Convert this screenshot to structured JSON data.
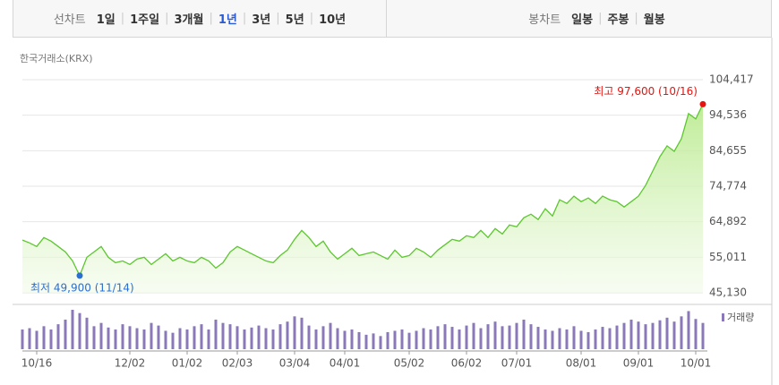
{
  "tabs": {
    "line": {
      "label": "선차트",
      "options": [
        "1일",
        "1주일",
        "3개월",
        "1년",
        "3년",
        "5년",
        "10년"
      ],
      "selected": 3
    },
    "candle": {
      "label": "봉차트",
      "options": [
        "일봉",
        "주봉",
        "월봉"
      ]
    }
  },
  "chart_data": {
    "type": "line",
    "source": "한국거래소(KRX)",
    "color": "#5cc72e",
    "high_label": "최고 97,600 (10/16)",
    "low_label": "최저 49,900 (11/14)",
    "high_color": "#e8140f",
    "low_color": "#2a6fd1",
    "categories": [
      null,
      null,
      "10/16",
      null,
      null,
      null,
      null,
      null,
      null,
      null,
      null,
      null,
      null,
      null,
      null,
      "12/02",
      null,
      null,
      null,
      null,
      null,
      null,
      null,
      "01/02",
      null,
      null,
      null,
      null,
      null,
      null,
      "02/03",
      null,
      null,
      null,
      null,
      null,
      null,
      null,
      "03/04",
      null,
      null,
      null,
      null,
      null,
      null,
      "04/01",
      null,
      null,
      null,
      null,
      null,
      null,
      null,
      null,
      "05/02",
      null,
      null,
      null,
      null,
      null,
      null,
      null,
      "06/02",
      null,
      null,
      null,
      null,
      null,
      null,
      "07/01",
      null,
      null,
      null,
      null,
      null,
      null,
      null,
      null,
      "08/01",
      null,
      null,
      null,
      null,
      null,
      null,
      null,
      "09/01",
      null,
      null,
      null,
      null,
      null,
      null,
      null,
      "10/01",
      null
    ],
    "values": [
      59800,
      59000,
      58000,
      60500,
      59500,
      58000,
      56500,
      54000,
      49900,
      55000,
      56500,
      58000,
      55000,
      53500,
      54000,
      53000,
      54500,
      55000,
      53000,
      54500,
      56000,
      54000,
      55000,
      54000,
      53500,
      55000,
      54000,
      52000,
      53500,
      56500,
      58000,
      57000,
      56000,
      55000,
      54000,
      53500,
      55500,
      57000,
      60000,
      62500,
      60500,
      58000,
      59500,
      56500,
      54500,
      56000,
      57500,
      55500,
      56000,
      56500,
      55500,
      54500,
      57000,
      55000,
      55500,
      57500,
      56500,
      55000,
      57000,
      58500,
      60000,
      59500,
      61000,
      60500,
      62500,
      60500,
      63000,
      61500,
      64000,
      63500,
      66000,
      67000,
      65500,
      68500,
      66500,
      71000,
      70000,
      72000,
      70500,
      71500,
      70000,
      72000,
      71000,
      70500,
      69000,
      70500,
      72000,
      75000,
      79000,
      83000,
      86000,
      84500,
      88000,
      95000,
      93500,
      97600
    ],
    "ylim": [
      45130,
      104417
    ],
    "yticks": [
      {
        "value": 45130,
        "label": "45,130"
      },
      {
        "value": 55011,
        "label": "55,011"
      },
      {
        "value": 64892,
        "label": "64,892"
      },
      {
        "value": 74774,
        "label": "74,774"
      },
      {
        "value": 84655,
        "label": "84,655"
      },
      {
        "value": 94536,
        "label": "94,536"
      },
      {
        "value": 104417,
        "label": "104,417"
      }
    ],
    "grid": true,
    "volume": {
      "name": "거래량",
      "color": "#8a78b8",
      "ylim": [
        0,
        60
      ],
      "values": [
        30,
        32,
        28,
        35,
        30,
        38,
        45,
        60,
        55,
        48,
        35,
        40,
        33,
        30,
        38,
        35,
        32,
        30,
        40,
        36,
        28,
        25,
        32,
        30,
        35,
        38,
        30,
        45,
        40,
        38,
        35,
        30,
        33,
        36,
        32,
        30,
        38,
        42,
        50,
        48,
        36,
        30,
        35,
        40,
        32,
        28,
        30,
        26,
        22,
        24,
        20,
        26,
        28,
        30,
        25,
        28,
        32,
        30,
        35,
        38,
        34,
        30,
        36,
        40,
        32,
        38,
        42,
        35,
        36,
        40,
        45,
        38,
        34,
        30,
        28,
        32,
        30,
        35,
        28,
        26,
        30,
        34,
        32,
        36,
        40,
        45,
        42,
        38,
        40,
        44,
        48,
        42,
        50,
        58,
        46,
        40
      ]
    }
  }
}
